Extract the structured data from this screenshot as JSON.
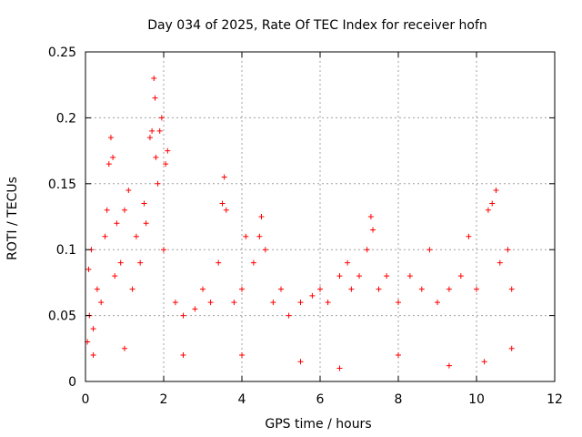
{
  "chart_data": {
    "type": "scatter",
    "title": "Day 034 of 2025, Rate Of TEC Index for receiver hofn",
    "xlabel": "GPS time / hours",
    "ylabel": "ROTI / TECUs",
    "xlim": [
      0,
      12
    ],
    "ylim": [
      0,
      0.25
    ],
    "xticks": [
      "0",
      "2",
      "4",
      "6",
      "8",
      "10",
      "12"
    ],
    "yticks": [
      "0",
      "0.05",
      "0.1",
      "0.15",
      "0.2",
      "0.25"
    ],
    "grid": true,
    "marker": "plus",
    "color": "#ff0000",
    "series": [
      {
        "points": [
          [
            0.05,
            0.03
          ],
          [
            0.08,
            0.085
          ],
          [
            0.1,
            0.05
          ],
          [
            0.15,
            0.1
          ],
          [
            0.2,
            0.04
          ],
          [
            0.3,
            0.07
          ],
          [
            0.4,
            0.06
          ],
          [
            0.5,
            0.11
          ],
          [
            0.55,
            0.13
          ],
          [
            0.6,
            0.165
          ],
          [
            0.65,
            0.185
          ],
          [
            0.7,
            0.17
          ],
          [
            0.75,
            0.08
          ],
          [
            0.8,
            0.12
          ],
          [
            0.9,
            0.09
          ],
          [
            1.0,
            0.13
          ],
          [
            1.1,
            0.145
          ],
          [
            1.2,
            0.07
          ],
          [
            1.3,
            0.11
          ],
          [
            1.4,
            0.09
          ],
          [
            1.5,
            0.135
          ],
          [
            1.55,
            0.12
          ],
          [
            1.65,
            0.185
          ],
          [
            1.7,
            0.19
          ],
          [
            1.75,
            0.23
          ],
          [
            1.78,
            0.215
          ],
          [
            1.8,
            0.17
          ],
          [
            1.85,
            0.15
          ],
          [
            1.9,
            0.19
          ],
          [
            1.95,
            0.2
          ],
          [
            2.0,
            0.1
          ],
          [
            2.05,
            0.165
          ],
          [
            2.1,
            0.175
          ],
          [
            2.3,
            0.06
          ],
          [
            2.5,
            0.05
          ],
          [
            2.8,
            0.055
          ],
          [
            3.0,
            0.07
          ],
          [
            3.2,
            0.06
          ],
          [
            3.4,
            0.09
          ],
          [
            3.5,
            0.135
          ],
          [
            3.55,
            0.155
          ],
          [
            3.6,
            0.13
          ],
          [
            3.8,
            0.06
          ],
          [
            4.0,
            0.07
          ],
          [
            4.1,
            0.11
          ],
          [
            4.3,
            0.09
          ],
          [
            4.45,
            0.11
          ],
          [
            4.5,
            0.125
          ],
          [
            4.6,
            0.1
          ],
          [
            4.8,
            0.06
          ],
          [
            5.0,
            0.07
          ],
          [
            5.2,
            0.05
          ],
          [
            5.5,
            0.06
          ],
          [
            5.8,
            0.065
          ],
          [
            6.0,
            0.07
          ],
          [
            6.2,
            0.06
          ],
          [
            6.5,
            0.08
          ],
          [
            6.7,
            0.09
          ],
          [
            6.8,
            0.07
          ],
          [
            7.0,
            0.08
          ],
          [
            7.2,
            0.1
          ],
          [
            7.3,
            0.125
          ],
          [
            7.35,
            0.115
          ],
          [
            7.5,
            0.07
          ],
          [
            7.7,
            0.08
          ],
          [
            8.0,
            0.06
          ],
          [
            8.3,
            0.08
          ],
          [
            8.6,
            0.07
          ],
          [
            8.8,
            0.1
          ],
          [
            9.0,
            0.06
          ],
          [
            9.3,
            0.07
          ],
          [
            9.6,
            0.08
          ],
          [
            9.8,
            0.11
          ],
          [
            10.0,
            0.07
          ],
          [
            10.3,
            0.13
          ],
          [
            10.4,
            0.135
          ],
          [
            10.5,
            0.145
          ],
          [
            10.6,
            0.09
          ],
          [
            10.8,
            0.1
          ],
          [
            10.9,
            0.07
          ],
          [
            0.2,
            0.02
          ],
          [
            1.0,
            0.025
          ],
          [
            2.5,
            0.02
          ],
          [
            4.0,
            0.02
          ],
          [
            5.5,
            0.015
          ],
          [
            6.5,
            0.01
          ],
          [
            8.0,
            0.02
          ],
          [
            9.3,
            0.012
          ],
          [
            10.2,
            0.015
          ],
          [
            10.9,
            0.025
          ]
        ]
      }
    ]
  }
}
